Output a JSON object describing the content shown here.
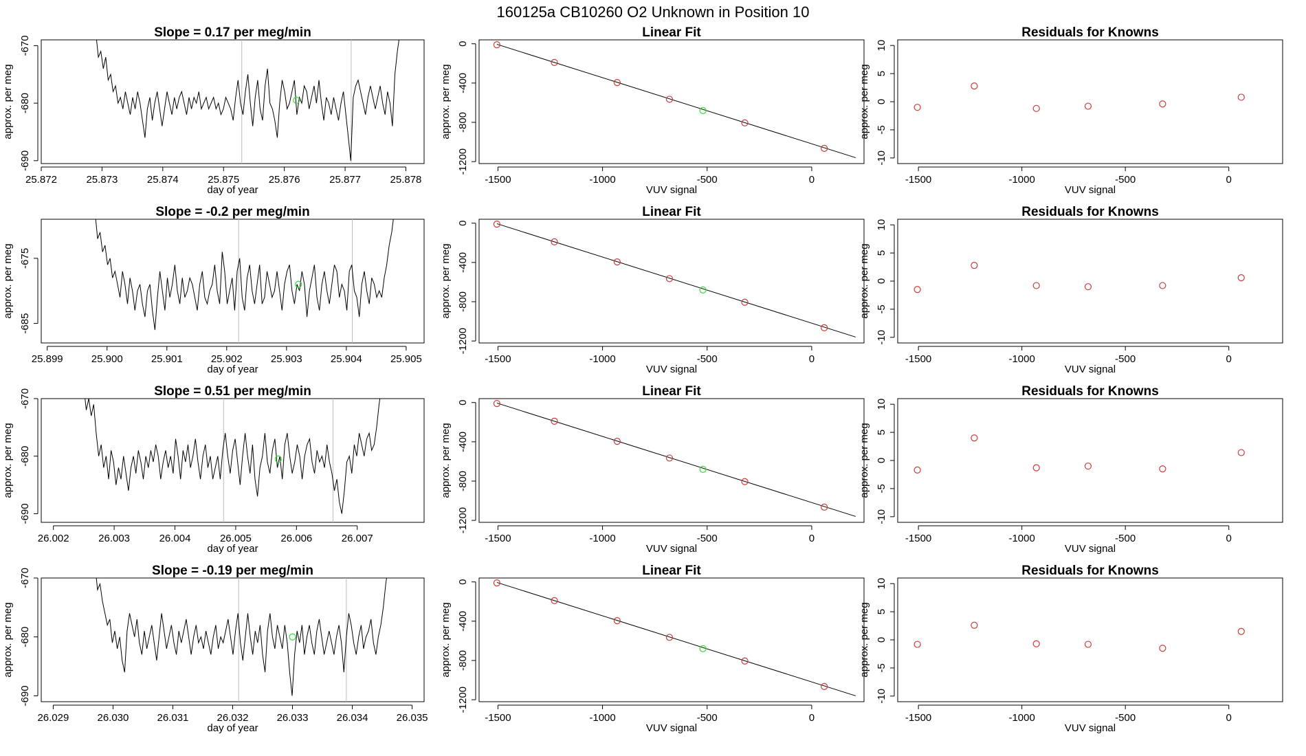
{
  "page": {
    "title": "160125a      CB10260    O2 Unknown in Position  10"
  },
  "colors": {
    "trace": "#000000",
    "known_point": "#cd3a3a",
    "unknown_point": "#33dd33",
    "marker_line": "#bbbbbb",
    "axis": "#000000"
  },
  "chart_data": [
    {
      "type": "line",
      "title": "Slope =  0.17  per meg/min",
      "xlabel": "day of year",
      "ylabel": "approx. per meg",
      "xlim": [
        25.872,
        25.8783
      ],
      "ylim": [
        -690.5,
        -669
      ],
      "x_ticks": [
        "25.872",
        "25.873",
        "25.874",
        "25.875",
        "25.876",
        "25.877",
        "25.878"
      ],
      "y_ticks": [
        "-670",
        "-680",
        "-690"
      ],
      "marker_x": [
        25.8753,
        25.8771
      ],
      "unknown_point": [
        25.8762,
        -679.5
      ],
      "trace_x_range": [
        25.8729,
        25.8779
      ],
      "trace": [
        -668,
        -672,
        -671,
        -674,
        -672,
        -676,
        -675,
        -678,
        -677,
        -680,
        -679,
        -681,
        -678,
        -680,
        -682,
        -679,
        -681,
        -678,
        -680,
        -683,
        -686,
        -681,
        -679,
        -683,
        -680,
        -678,
        -681,
        -684,
        -681,
        -678,
        -680,
        -682,
        -679,
        -681,
        -679,
        -678,
        -680,
        -682,
        -679,
        -681,
        -679,
        -680,
        -678,
        -681,
        -680,
        -679,
        -681,
        -680,
        -679,
        -681,
        -680,
        -682,
        -681,
        -679,
        -680,
        -681,
        -683,
        -679,
        -676,
        -680,
        -682,
        -678,
        -675,
        -680,
        -684,
        -679,
        -676,
        -681,
        -683,
        -677,
        -674,
        -680,
        -681,
        -683,
        -686,
        -680,
        -676,
        -678,
        -681,
        -680,
        -678,
        -676,
        -682,
        -679,
        -680,
        -677,
        -678,
        -681,
        -679,
        -677,
        -680,
        -676,
        -680,
        -683,
        -679,
        -680,
        -682,
        -679,
        -681,
        -683,
        -680,
        -678,
        -682,
        -686,
        -690,
        -679,
        -677,
        -676,
        -678,
        -680,
        -682,
        -679,
        -677,
        -679,
        -681,
        -679,
        -677,
        -680,
        -682,
        -678,
        -680,
        -684,
        -675,
        -671,
        -668
      ],
      "type_of_marks": "continuous trace with vertical marker lines"
    },
    {
      "type": "scatter",
      "title": "Linear Fit",
      "xlabel": "VUV signal",
      "ylabel": "approx. per meg",
      "xlim": [
        -1590,
        250
      ],
      "ylim": [
        -1220,
        40
      ],
      "x_ticks": [
        "-1500",
        "-1000",
        "-500",
        "0"
      ],
      "y_ticks": [
        "0",
        "-400",
        "-800",
        "-1200"
      ],
      "fit_line": [
        [
          -1505,
          -5
        ],
        [
          210,
          -1160
        ]
      ],
      "knowns": [
        [
          -1505,
          -10
        ],
        [
          -1230,
          -190
        ],
        [
          -930,
          -395
        ],
        [
          -680,
          -565
        ],
        [
          -320,
          -805
        ],
        [
          60,
          -1065
        ]
      ],
      "unknown_point": [
        -520,
        -680
      ]
    },
    {
      "type": "scatter",
      "title": "Residuals for Knowns",
      "xlabel": "VUV signal",
      "ylabel": "approx. per meg",
      "xlim": [
        -1600,
        260
      ],
      "ylim": [
        -11,
        11
      ],
      "x_ticks": [
        "-1500",
        "-1000",
        "-500",
        "0"
      ],
      "y_ticks": [
        "10",
        "5",
        "0",
        "-5",
        "-10"
      ],
      "points": [
        [
          -1505,
          -1.0
        ],
        [
          -1230,
          2.8
        ],
        [
          -930,
          -1.2
        ],
        [
          -680,
          -0.8
        ],
        [
          -320,
          -0.4
        ],
        [
          60,
          0.8
        ]
      ]
    },
    {
      "type": "line",
      "title": "Slope =  -0.2  per meg/min",
      "xlabel": "day of year",
      "ylabel": "approx. per meg",
      "xlim": [
        25.8989,
        25.9053
      ],
      "ylim": [
        -688,
        -669
      ],
      "x_ticks": [
        "25.899",
        "25.900",
        "25.901",
        "25.902",
        "25.903",
        "25.904",
        "25.905"
      ],
      "y_ticks": [
        "-675",
        "-685"
      ],
      "marker_x": [
        25.9022,
        25.9041
      ],
      "unknown_point": [
        25.9032,
        -679
      ],
      "trace_x_range": [
        25.8998,
        25.9048
      ],
      "trace": [
        -668,
        -672,
        -671,
        -674,
        -673,
        -676,
        -675,
        -678,
        -677,
        -679,
        -681,
        -677,
        -679,
        -682,
        -678,
        -680,
        -683,
        -680,
        -679,
        -682,
        -684,
        -680,
        -679,
        -683,
        -686,
        -681,
        -677,
        -680,
        -683,
        -678,
        -681,
        -679,
        -676,
        -680,
        -682,
        -678,
        -681,
        -680,
        -678,
        -679,
        -681,
        -683,
        -679,
        -677,
        -681,
        -682,
        -680,
        -679,
        -676,
        -680,
        -682,
        -674,
        -677,
        -682,
        -680,
        -678,
        -683,
        -677,
        -675,
        -681,
        -683,
        -678,
        -676,
        -680,
        -682,
        -679,
        -676,
        -682,
        -681,
        -677,
        -679,
        -681,
        -680,
        -677,
        -680,
        -683,
        -679,
        -677,
        -676,
        -680,
        -682,
        -679,
        -680,
        -677,
        -679,
        -684,
        -680,
        -678,
        -676,
        -681,
        -683,
        -679,
        -677,
        -680,
        -682,
        -679,
        -676,
        -677,
        -681,
        -679,
        -680,
        -683,
        -677,
        -676,
        -680,
        -681,
        -684,
        -679,
        -677,
        -680,
        -682,
        -678,
        -679,
        -681,
        -680,
        -681,
        -678,
        -676,
        -673,
        -671,
        -668
      ],
      "type_of_marks": "continuous trace with vertical marker lines"
    },
    {
      "type": "scatter",
      "title": "Linear Fit",
      "xlabel": "VUV signal",
      "ylabel": "approx. per meg",
      "xlim": [
        -1590,
        250
      ],
      "ylim": [
        -1220,
        40
      ],
      "x_ticks": [
        "-1500",
        "-1000",
        "-500",
        "0"
      ],
      "y_ticks": [
        "0",
        "-400",
        "-800",
        "-1200"
      ],
      "fit_line": [
        [
          -1505,
          -5
        ],
        [
          210,
          -1160
        ]
      ],
      "knowns": [
        [
          -1505,
          -10
        ],
        [
          -1230,
          -190
        ],
        [
          -930,
          -395
        ],
        [
          -680,
          -565
        ],
        [
          -320,
          -805
        ],
        [
          60,
          -1065
        ]
      ],
      "unknown_point": [
        -520,
        -680
      ]
    },
    {
      "type": "scatter",
      "title": "Residuals for Knowns",
      "xlabel": "VUV signal",
      "ylabel": "approx. per meg",
      "xlim": [
        -1600,
        260
      ],
      "ylim": [
        -11,
        11
      ],
      "x_ticks": [
        "-1500",
        "-1000",
        "-500",
        "0"
      ],
      "y_ticks": [
        "10",
        "5",
        "0",
        "-5",
        "-10"
      ],
      "points": [
        [
          -1505,
          -1.5
        ],
        [
          -1230,
          2.8
        ],
        [
          -930,
          -0.8
        ],
        [
          -680,
          -1.0
        ],
        [
          -320,
          -0.8
        ],
        [
          60,
          0.6
        ]
      ]
    },
    {
      "type": "line",
      "title": "Slope =  0.51  per meg/min",
      "xlabel": "day of year",
      "ylabel": "approx. per meg",
      "xlim": [
        26.0018,
        26.0081
      ],
      "ylim": [
        -691.5,
        -670
      ],
      "x_ticks": [
        "26.002",
        "26.003",
        "26.004",
        "26.005",
        "26.006",
        "26.007"
      ],
      "y_ticks": [
        "-670",
        "-680",
        "-690"
      ],
      "marker_x": [
        26.0048,
        26.0066
      ],
      "unknown_point": [
        26.0057,
        -680.5
      ],
      "trace_x_range": [
        26.0025,
        26.0074
      ],
      "trace": [
        -668,
        -672,
        -670,
        -673,
        -671,
        -676,
        -680,
        -678,
        -682,
        -680,
        -684,
        -679,
        -681,
        -685,
        -682,
        -684,
        -680,
        -683,
        -686,
        -682,
        -680,
        -683,
        -679,
        -681,
        -684,
        -680,
        -682,
        -679,
        -681,
        -678,
        -680,
        -684,
        -681,
        -679,
        -682,
        -680,
        -683,
        -677,
        -680,
        -684,
        -679,
        -681,
        -678,
        -682,
        -680,
        -677,
        -681,
        -684,
        -680,
        -678,
        -682,
        -680,
        -684,
        -682,
        -680,
        -684,
        -679,
        -676,
        -680,
        -683,
        -679,
        -677,
        -681,
        -685,
        -680,
        -676,
        -680,
        -683,
        -678,
        -684,
        -687,
        -682,
        -680,
        -676,
        -681,
        -683,
        -679,
        -677,
        -682,
        -680,
        -684,
        -678,
        -676,
        -680,
        -683,
        -681,
        -678,
        -680,
        -684,
        -680,
        -678,
        -677,
        -681,
        -683,
        -679,
        -681,
        -680,
        -682,
        -678,
        -681,
        -683,
        -686,
        -684,
        -688,
        -690,
        -686,
        -681,
        -680,
        -683,
        -678,
        -680,
        -676,
        -678,
        -680,
        -677,
        -676,
        -679,
        -678,
        -675,
        -671,
        -668
      ],
      "type_of_marks": "continuous trace with vertical marker lines"
    },
    {
      "type": "scatter",
      "title": "Linear Fit",
      "xlabel": "VUV signal",
      "ylabel": "approx. per meg",
      "xlim": [
        -1590,
        250
      ],
      "ylim": [
        -1220,
        40
      ],
      "x_ticks": [
        "-1500",
        "-1000",
        "-500",
        "0"
      ],
      "y_ticks": [
        "0",
        "-400",
        "-800",
        "-1200"
      ],
      "fit_line": [
        [
          -1505,
          -5
        ],
        [
          210,
          -1160
        ]
      ],
      "knowns": [
        [
          -1505,
          -10
        ],
        [
          -1230,
          -190
        ],
        [
          -930,
          -395
        ],
        [
          -680,
          -565
        ],
        [
          -320,
          -805
        ],
        [
          60,
          -1065
        ]
      ],
      "unknown_point": [
        -520,
        -680
      ]
    },
    {
      "type": "scatter",
      "title": "Residuals for Knowns",
      "xlabel": "VUV signal",
      "ylabel": "approx. per meg",
      "xlim": [
        -1600,
        260
      ],
      "ylim": [
        -11,
        11
      ],
      "x_ticks": [
        "-1500",
        "-1000",
        "-500",
        "0"
      ],
      "y_ticks": [
        "10",
        "5",
        "0",
        "-5",
        "-10"
      ],
      "points": [
        [
          -1505,
          -1.7
        ],
        [
          -1230,
          4.0
        ],
        [
          -930,
          -1.3
        ],
        [
          -680,
          -1.0
        ],
        [
          -320,
          -1.5
        ],
        [
          60,
          1.4
        ]
      ]
    },
    {
      "type": "line",
      "title": "Slope =  -0.19  per meg/min",
      "xlabel": "day of year",
      "ylabel": "approx. per meg",
      "xlim": [
        26.0288,
        26.0352
      ],
      "ylim": [
        -691,
        -670
      ],
      "x_ticks": [
        "26.029",
        "26.030",
        "26.031",
        "26.032",
        "26.033",
        "26.034",
        "26.035"
      ],
      "y_ticks": [
        "-670",
        "-680",
        "-690"
      ],
      "marker_x": [
        26.0321,
        26.0339
      ],
      "unknown_point": [
        26.033,
        -680
      ],
      "trace_x_range": [
        26.0297,
        26.0346
      ],
      "trace": [
        -668,
        -672,
        -671,
        -674,
        -676,
        -678,
        -677,
        -681,
        -679,
        -682,
        -680,
        -684,
        -686,
        -679,
        -676,
        -678,
        -680,
        -677,
        -681,
        -683,
        -679,
        -682,
        -680,
        -678,
        -681,
        -684,
        -680,
        -676,
        -679,
        -682,
        -680,
        -678,
        -681,
        -683,
        -679,
        -681,
        -679,
        -677,
        -680,
        -683,
        -680,
        -678,
        -681,
        -680,
        -682,
        -679,
        -681,
        -683,
        -680,
        -678,
        -682,
        -680,
        -681,
        -679,
        -677,
        -680,
        -683,
        -679,
        -676,
        -681,
        -684,
        -680,
        -676,
        -680,
        -683,
        -679,
        -681,
        -678,
        -683,
        -686,
        -679,
        -676,
        -680,
        -682,
        -678,
        -680,
        -682,
        -678,
        -681,
        -686,
        -690,
        -683,
        -679,
        -681,
        -678,
        -683,
        -680,
        -678,
        -681,
        -683,
        -679,
        -677,
        -680,
        -683,
        -681,
        -679,
        -681,
        -683,
        -680,
        -678,
        -681,
        -686,
        -680,
        -676,
        -678,
        -681,
        -683,
        -680,
        -678,
        -682,
        -680,
        -679,
        -677,
        -681,
        -683,
        -680,
        -678,
        -675,
        -671,
        -668
      ],
      "type_of_marks": "continuous trace with vertical marker lines"
    },
    {
      "type": "scatter",
      "title": "Linear Fit",
      "xlabel": "VUV signal",
      "ylabel": "approx. per meg",
      "xlim": [
        -1590,
        250
      ],
      "ylim": [
        -1220,
        40
      ],
      "x_ticks": [
        "-1500",
        "-1000",
        "-500",
        "0"
      ],
      "y_ticks": [
        "0",
        "-400",
        "-800",
        "-1200"
      ],
      "fit_line": [
        [
          -1505,
          -5
        ],
        [
          210,
          -1160
        ]
      ],
      "knowns": [
        [
          -1505,
          -10
        ],
        [
          -1230,
          -190
        ],
        [
          -930,
          -395
        ],
        [
          -680,
          -565
        ],
        [
          -320,
          -805
        ],
        [
          60,
          -1065
        ]
      ],
      "unknown_point": [
        -520,
        -680
      ]
    },
    {
      "type": "scatter",
      "title": "Residuals for Knowns",
      "xlabel": "VUV signal",
      "ylabel": "approx. per meg",
      "xlim": [
        -1600,
        260
      ],
      "ylim": [
        -11,
        11
      ],
      "x_ticks": [
        "-1500",
        "-1000",
        "-500",
        "0"
      ],
      "y_ticks": [
        "10",
        "5",
        "0",
        "-5",
        "-10"
      ],
      "points": [
        [
          -1505,
          -0.8
        ],
        [
          -1230,
          2.6
        ],
        [
          -930,
          -0.7
        ],
        [
          -680,
          -0.8
        ],
        [
          -320,
          -1.5
        ],
        [
          60,
          1.5
        ]
      ]
    }
  ]
}
